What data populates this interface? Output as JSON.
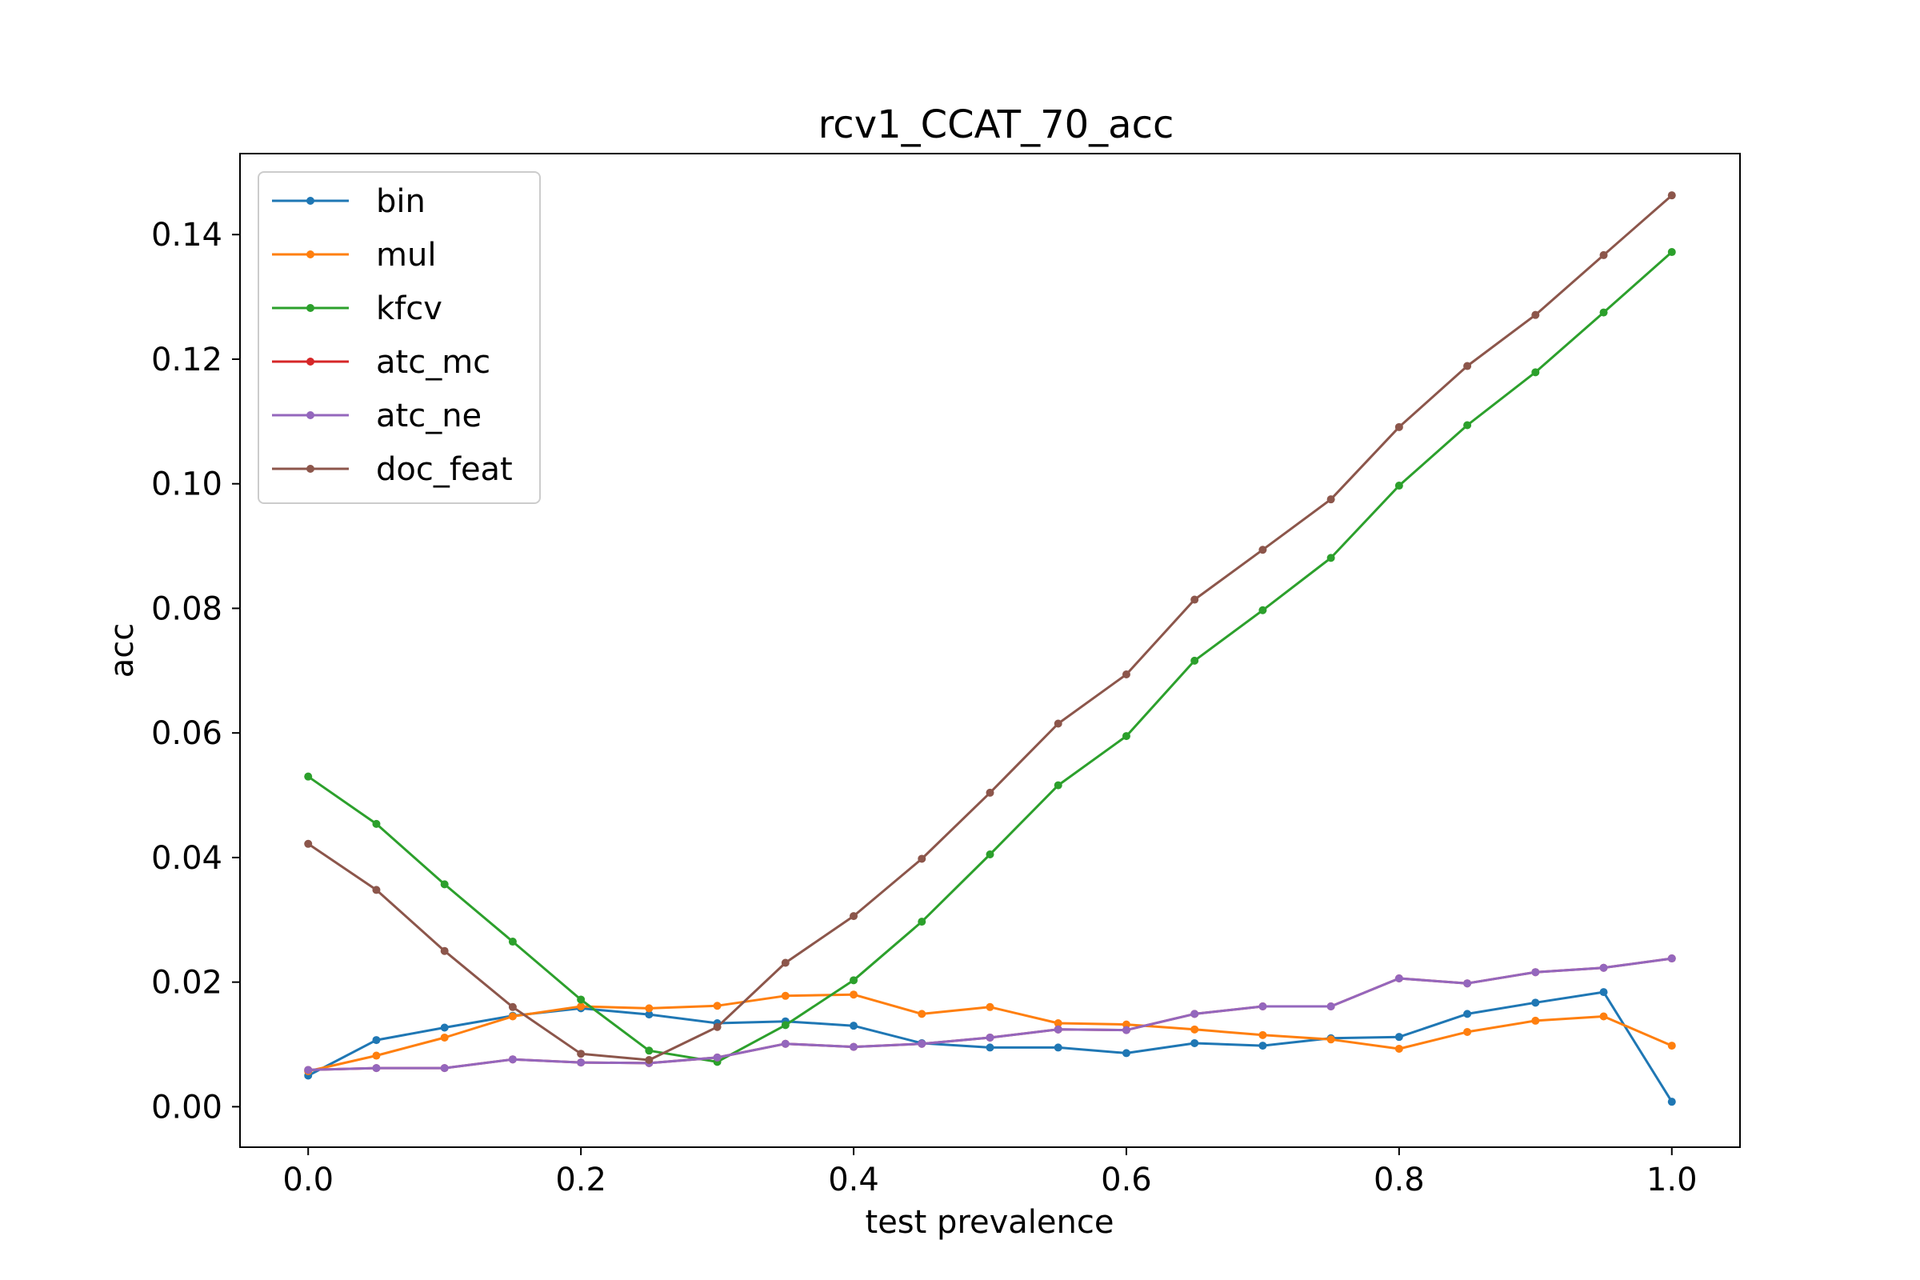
{
  "chart_data": {
    "type": "line",
    "title": "rcv1_CCAT_70_acc",
    "xlabel": "test prevalence",
    "ylabel": "acc",
    "xlim": [
      -0.05,
      1.05
    ],
    "ylim": [
      -0.0065,
      0.153
    ],
    "xticks": [
      0.0,
      0.2,
      0.4,
      0.6,
      0.8,
      1.0
    ],
    "xtick_labels": [
      "0.0",
      "0.2",
      "0.4",
      "0.6",
      "0.8",
      "1.0"
    ],
    "yticks": [
      0.0,
      0.02,
      0.04,
      0.06,
      0.08,
      0.1,
      0.12,
      0.14
    ],
    "ytick_labels": [
      "0.00",
      "0.02",
      "0.04",
      "0.06",
      "0.08",
      "0.10",
      "0.12",
      "0.14"
    ],
    "grid": false,
    "legend_position": "upper-left",
    "x": [
      0.0,
      0.05,
      0.1,
      0.15,
      0.2,
      0.25,
      0.3,
      0.35,
      0.4,
      0.45,
      0.5,
      0.55,
      0.6,
      0.65,
      0.7,
      0.75,
      0.8,
      0.85,
      0.9,
      0.95,
      1.0
    ],
    "series": [
      {
        "name": "bin",
        "color": "#1f77b4",
        "values": [
          0.005,
          0.0107,
          0.0127,
          0.0146,
          0.0158,
          0.0148,
          0.0134,
          0.0137,
          0.013,
          0.0102,
          0.0095,
          0.0095,
          0.0086,
          0.0102,
          0.0098,
          0.011,
          0.0112,
          0.0149,
          0.0167,
          0.0184,
          0.0008
        ]
      },
      {
        "name": "mul",
        "color": "#ff7f0e",
        "values": [
          0.0057,
          0.0082,
          0.0111,
          0.0145,
          0.0161,
          0.0158,
          0.0162,
          0.0178,
          0.018,
          0.0149,
          0.016,
          0.0134,
          0.0132,
          0.0124,
          0.0115,
          0.0108,
          0.0093,
          0.012,
          0.0138,
          0.0145,
          0.0098
        ]
      },
      {
        "name": "kfcv",
        "color": "#2ca02c",
        "values": [
          0.053,
          0.0454,
          0.0357,
          0.0265,
          0.0172,
          0.009,
          0.0072,
          0.0131,
          0.0203,
          0.0297,
          0.0405,
          0.0516,
          0.0595,
          0.0716,
          0.0797,
          0.0881,
          0.0997,
          0.1094,
          0.1179,
          0.1275,
          0.1372
        ]
      },
      {
        "name": "atc_mc",
        "color": "#d62728",
        "values": [
          0.0059,
          0.0062,
          0.0062,
          0.0076,
          0.0071,
          0.007,
          0.0079,
          0.0101,
          0.0096,
          0.0101,
          0.0111,
          0.0124,
          0.0123,
          0.0149,
          0.0161,
          0.0161,
          0.0206,
          0.0198,
          0.0216,
          0.0223,
          0.0238
        ]
      },
      {
        "name": "atc_ne",
        "color": "#9467bd",
        "values": [
          0.0059,
          0.0062,
          0.0062,
          0.0076,
          0.0071,
          0.007,
          0.0079,
          0.0101,
          0.0096,
          0.0101,
          0.0111,
          0.0124,
          0.0123,
          0.0149,
          0.0161,
          0.0161,
          0.0206,
          0.0198,
          0.0216,
          0.0223,
          0.0238
        ]
      },
      {
        "name": "doc_feat",
        "color": "#8c564b",
        "values": [
          0.0422,
          0.0348,
          0.025,
          0.016,
          0.0085,
          0.0075,
          0.0128,
          0.0231,
          0.0306,
          0.0398,
          0.0504,
          0.0615,
          0.0694,
          0.0814,
          0.0894,
          0.0975,
          0.1091,
          0.1189,
          0.1271,
          0.1367,
          0.1463
        ]
      }
    ]
  }
}
